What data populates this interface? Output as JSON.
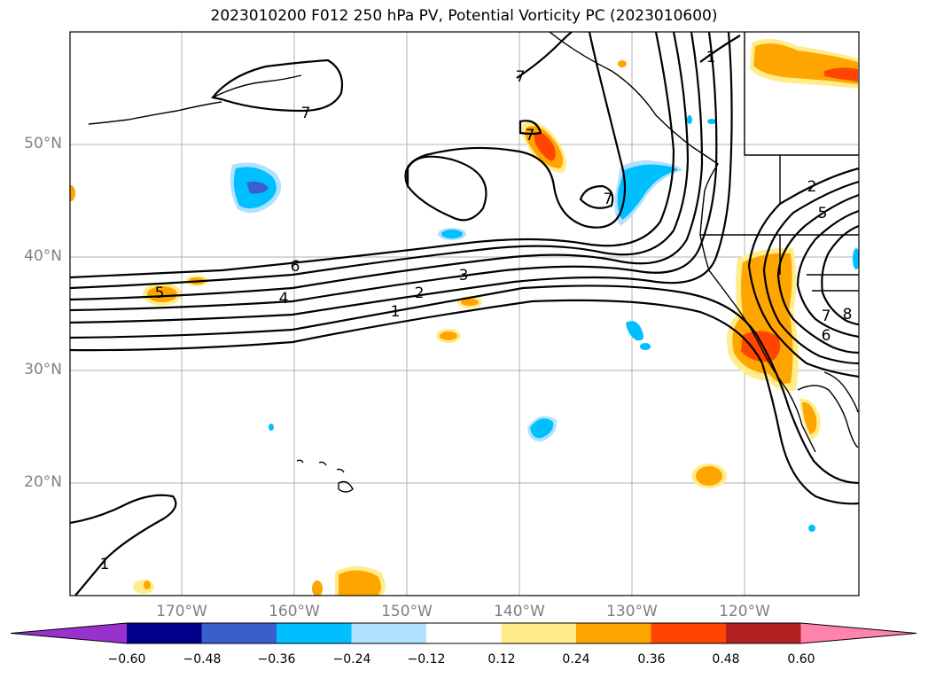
{
  "title": "2023010200 F012 250 hPa PV, Potential Vorticity PC (2023010600)",
  "lat_labels": [
    "50°N",
    "40°N",
    "30°N",
    "20°N"
  ],
  "lon_labels": [
    "170°W",
    "160°W",
    "150°W",
    "140°W",
    "130°W",
    "120°W"
  ],
  "contour_labels": [
    "7",
    "7",
    "1",
    "7",
    "7",
    "6",
    "5",
    "4",
    "3",
    "2",
    "1",
    "2",
    "5",
    "6",
    "7",
    "8",
    "1"
  ],
  "colorbar": {
    "ticks": [
      "−0.60",
      "−0.48",
      "−0.36",
      "−0.24",
      "−0.12",
      "0.12",
      "0.24",
      "0.36",
      "0.48",
      "0.60"
    ],
    "colors": [
      "#9932cc",
      "#00008b",
      "#3a5fcd",
      "#00bfff",
      "#b0e2ff",
      "#ffffff",
      "#ffec8b",
      "#ffa500",
      "#ff4500",
      "#b22222",
      "#ff83aa"
    ]
  }
}
